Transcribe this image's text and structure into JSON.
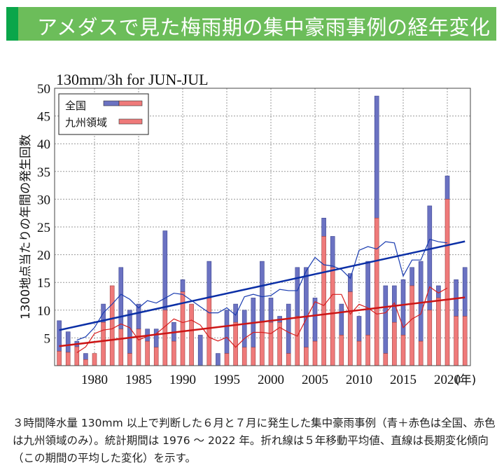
{
  "header": {
    "title": "アメダスで見た梅雨期の集中豪雨事例の経年変化"
  },
  "chart_data": {
    "type": "bar",
    "title": "130mm/3h for JUN-JUL",
    "ylabel": "1300地点当たりの年間の発生回数",
    "xlabel": "(年)",
    "ylim": [
      0,
      50
    ],
    "yticks": [
      "5",
      "10",
      "15",
      "20",
      "25",
      "30",
      "35",
      "40",
      "45",
      "50"
    ],
    "xticks": [
      "1980",
      "1985",
      "1990",
      "1995",
      "2000",
      "2005",
      "2010",
      "2015",
      "2020"
    ],
    "grid": true,
    "legend_position": "top-left",
    "legend": [
      "全国",
      "九州領域"
    ],
    "colors": {
      "national": "#6b72c2",
      "kyushu": "#ef7a7a",
      "national_line": "#1a3cb0",
      "kyushu_line": "#d81e1e"
    },
    "years": [
      1976,
      1977,
      1978,
      1979,
      1980,
      1981,
      1982,
      1983,
      1984,
      1985,
      1986,
      1987,
      1988,
      1989,
      1990,
      1991,
      1992,
      1993,
      1994,
      1995,
      1996,
      1997,
      1998,
      1999,
      2000,
      2001,
      2002,
      2003,
      2004,
      2005,
      2006,
      2007,
      2008,
      2009,
      2010,
      2011,
      2012,
      2013,
      2014,
      2015,
      2016,
      2017,
      2018,
      2019,
      2020,
      2021,
      2022
    ],
    "series": [
      {
        "name": "全国",
        "values": [
          8.1,
          6.1,
          4.4,
          2.2,
          2.2,
          11.1,
          14.4,
          17.7,
          10.0,
          11.1,
          6.6,
          6.6,
          24.3,
          7.8,
          15.5,
          11.1,
          5.5,
          18.8,
          2.2,
          10.0,
          11.1,
          10.0,
          12.2,
          18.8,
          12.2,
          8.9,
          11.1,
          17.7,
          17.7,
          12.2,
          26.6,
          23.3,
          11.1,
          16.6,
          8.9,
          18.8,
          48.6,
          14.4,
          14.4,
          15.5,
          17.7,
          18.8,
          28.8,
          14.4,
          34.2,
          15.5,
          17.7
        ]
      },
      {
        "name": "九州領域",
        "values": [
          2.6,
          2.4,
          3.4,
          1.1,
          2.2,
          7.8,
          14.4,
          6.6,
          2.2,
          6.6,
          4.4,
          3.3,
          10.0,
          4.4,
          13.3,
          11.1,
          0,
          12.2,
          0,
          2.2,
          7.8,
          3.3,
          3.3,
          7.8,
          7.8,
          7.8,
          2.2,
          8.9,
          3.3,
          4.4,
          23.3,
          17.7,
          5.5,
          13.3,
          4.4,
          5.5,
          26.6,
          2.2,
          7.8,
          5.5,
          14.4,
          4.4,
          10.0,
          12.2,
          30.0,
          8.9,
          8.9
        ]
      }
    ],
    "moving_average_window": 5,
    "trend": {
      "national": [
        6.4,
        22.4
      ],
      "kyushu": [
        3.5,
        12.3
      ]
    }
  },
  "caption": "３時間降水量 130mm 以上で判断した６月と７月に発生した集中豪雨事例（青＋赤色は全国、赤色は九州領域のみ）。統計期間は 1976 ～ 2022 年。折れ線は５年移動平均値、直線は長期変化傾向（この期間の平均した変化）を示す。"
}
